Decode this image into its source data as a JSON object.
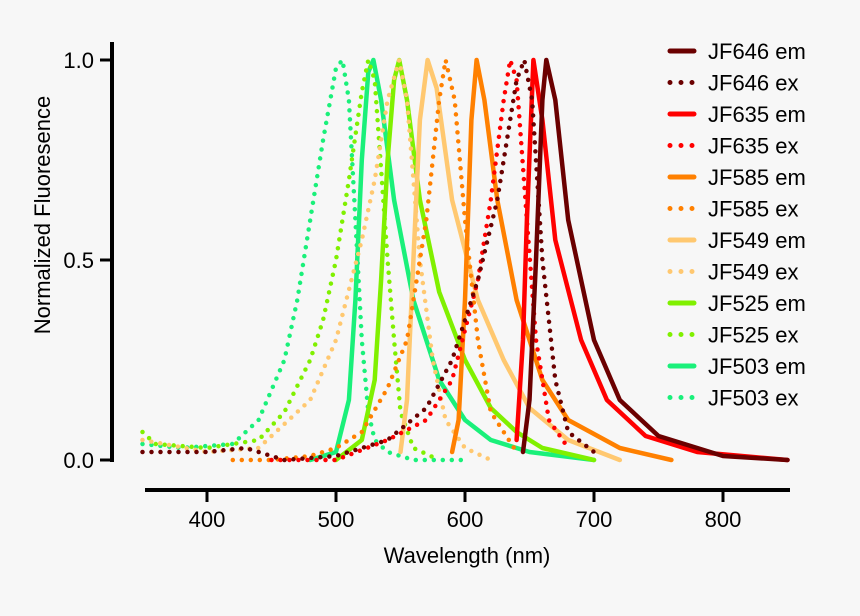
{
  "chart_data": {
    "type": "line",
    "title": "",
    "xlabel": "Wavelength (nm)",
    "ylabel": "Normalized Fluoresence",
    "xlim": [
      350,
      850
    ],
    "ylim": [
      0,
      1
    ],
    "xticks": [
      400,
      500,
      600,
      700,
      800
    ],
    "yticks": [
      0.0,
      0.5,
      1.0
    ],
    "ytick_labels": [
      "0.0",
      "0.5",
      "1.0"
    ],
    "grid": false,
    "legend": "top-right",
    "series": [
      {
        "name": "JF646 em",
        "color": "#6b0000",
        "style": "solid",
        "x": [
          645,
          650,
          655,
          660,
          663,
          670,
          680,
          700,
          720,
          750,
          800,
          850
        ],
        "y": [
          0.02,
          0.15,
          0.5,
          0.9,
          1,
          0.9,
          0.6,
          0.3,
          0.15,
          0.06,
          0.01,
          0
        ]
      },
      {
        "name": "JF646 ex",
        "color": "#6b0000",
        "style": "dotted",
        "x": [
          350,
          400,
          430,
          460,
          500,
          540,
          570,
          590,
          610,
          625,
          640,
          646,
          652,
          660,
          670,
          680,
          700
        ],
        "y": [
          0.02,
          0.02,
          0.03,
          0.0,
          0.01,
          0.05,
          0.13,
          0.25,
          0.45,
          0.65,
          0.95,
          1,
          0.9,
          0.5,
          0.2,
          0.07,
          0.02
        ]
      },
      {
        "name": "JF635 em",
        "color": "#ff0000",
        "style": "solid",
        "x": [
          640,
          645,
          648,
          653,
          660,
          670,
          690,
          710,
          740,
          780,
          850
        ],
        "y": [
          0.05,
          0.3,
          0.6,
          1,
          0.85,
          0.55,
          0.3,
          0.15,
          0.06,
          0.02,
          0
        ]
      },
      {
        "name": "JF635 ex",
        "color": "#ff0000",
        "style": "dotted",
        "x": [
          450,
          500,
          540,
          570,
          590,
          610,
          620,
          630,
          635,
          640,
          648,
          655,
          665,
          680
        ],
        "y": [
          0,
          0,
          0.05,
          0.1,
          0.2,
          0.45,
          0.65,
          0.9,
          1,
          0.95,
          0.6,
          0.3,
          0.1,
          0.03
        ]
      },
      {
        "name": "JF585 em",
        "color": "#ff8000",
        "style": "solid",
        "x": [
          590,
          595,
          600,
          605,
          609,
          615,
          625,
          640,
          660,
          680,
          720,
          760
        ],
        "y": [
          0.02,
          0.1,
          0.4,
          0.85,
          1,
          0.9,
          0.65,
          0.4,
          0.2,
          0.1,
          0.03,
          0
        ]
      },
      {
        "name": "JF585 ex",
        "color": "#ff8000",
        "style": "dotted",
        "x": [
          420,
          450,
          480,
          500,
          520,
          540,
          555,
          570,
          580,
          585,
          592,
          600,
          610,
          620,
          640
        ],
        "y": [
          0,
          0,
          0.01,
          0.03,
          0.07,
          0.18,
          0.3,
          0.6,
          0.9,
          1,
          0.9,
          0.6,
          0.3,
          0.12,
          0.02
        ]
      },
      {
        "name": "JF549 em",
        "color": "#ffc870",
        "style": "solid",
        "x": [
          550,
          555,
          560,
          565,
          571,
          578,
          590,
          610,
          630,
          650,
          680,
          720
        ],
        "y": [
          0.02,
          0.15,
          0.5,
          0.85,
          1,
          0.93,
          0.65,
          0.4,
          0.25,
          0.13,
          0.05,
          0
        ]
      },
      {
        "name": "JF549 ex",
        "color": "#ffc870",
        "style": "dotted",
        "x": [
          350,
          400,
          440,
          480,
          500,
          520,
          530,
          540,
          549,
          555,
          565,
          575,
          585,
          600,
          620
        ],
        "y": [
          0.05,
          0.02,
          0.03,
          0.15,
          0.3,
          0.55,
          0.7,
          0.9,
          1,
          0.9,
          0.5,
          0.25,
          0.1,
          0.03,
          0
        ]
      },
      {
        "name": "JF525 em",
        "color": "#80f000",
        "style": "solid",
        "x": [
          500,
          520,
          530,
          535,
          540,
          545,
          549,
          555,
          565,
          580,
          600,
          620,
          640,
          660,
          700
        ],
        "y": [
          0,
          0.05,
          0.2,
          0.45,
          0.75,
          0.95,
          1,
          0.9,
          0.65,
          0.42,
          0.25,
          0.13,
          0.07,
          0.03,
          0
        ]
      },
      {
        "name": "JF525 ex",
        "color": "#80f000",
        "style": "dotted",
        "x": [
          350,
          360,
          400,
          440,
          460,
          480,
          490,
          500,
          510,
          520,
          525,
          530,
          540,
          545,
          550,
          560,
          580
        ],
        "y": [
          0.07,
          0.04,
          0.03,
          0.05,
          0.12,
          0.25,
          0.35,
          0.5,
          0.7,
          0.92,
          1,
          0.95,
          0.5,
          0.3,
          0.12,
          0.03,
          0
        ]
      },
      {
        "name": "JF503 em",
        "color": "#1af07a",
        "style": "solid",
        "x": [
          480,
          500,
          510,
          515,
          520,
          525,
          529,
          535,
          545,
          560,
          580,
          600,
          620,
          650,
          700
        ],
        "y": [
          0,
          0.02,
          0.15,
          0.4,
          0.75,
          0.97,
          1,
          0.9,
          0.65,
          0.4,
          0.2,
          0.1,
          0.05,
          0.02,
          0
        ]
      },
      {
        "name": "JF503 ex",
        "color": "#1af07a",
        "style": "dotted",
        "x": [
          350,
          380,
          420,
          440,
          460,
          470,
          480,
          490,
          500,
          505,
          510,
          515,
          520,
          525,
          530,
          540,
          560,
          600
        ],
        "y": [
          0.04,
          0.03,
          0.04,
          0.1,
          0.25,
          0.4,
          0.6,
          0.8,
          0.98,
          1,
          0.9,
          0.6,
          0.3,
          0.12,
          0.05,
          0.02,
          0,
          0
        ]
      }
    ]
  }
}
